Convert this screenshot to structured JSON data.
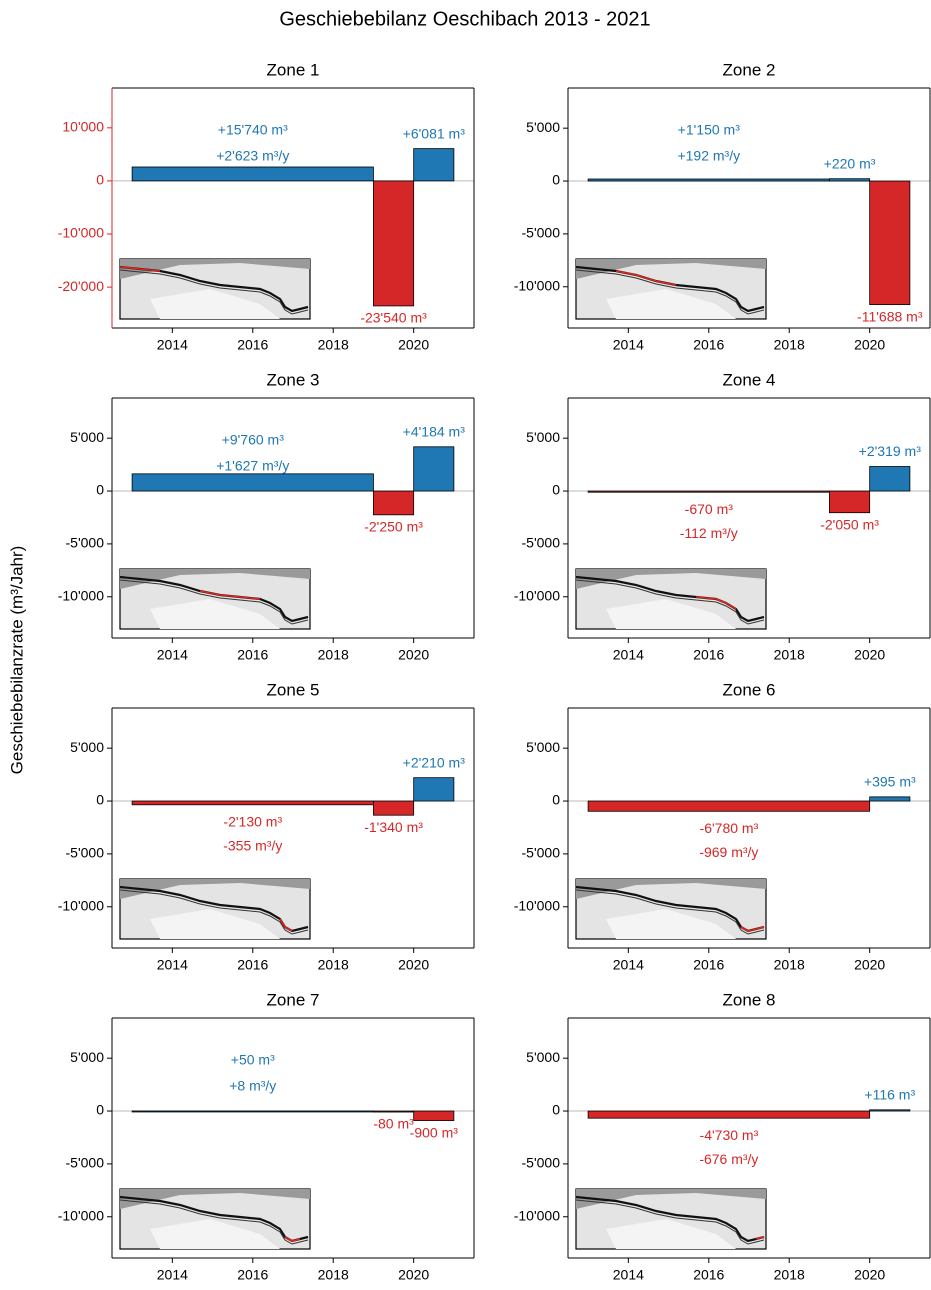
{
  "title": "Geschiebebilanz Oeschibach 2013 - 2021",
  "ylabel": "Geschiebebilanzrate (m³/Jahr)",
  "chart_data": [
    {
      "type": "bar",
      "title": "Zone 1",
      "x_start": [
        2013,
        2019,
        2020
      ],
      "x_end": [
        2019,
        2020,
        2021
      ],
      "values": [
        2623,
        -23540,
        6081
      ],
      "colors": [
        "#1f77b4",
        "#d62728",
        "#1f77b4"
      ],
      "value_labels": [
        "+2'623 m³/y",
        "-23'540 m³",
        "+6'081 m³"
      ],
      "period_total": 15740,
      "period_total_label": "+15'740 m³",
      "xlim": [
        2012.5,
        2021.5
      ],
      "ylim": [
        -27700,
        17500
      ],
      "xticks": [
        2014,
        2016,
        2018,
        2020
      ],
      "yticks": [
        {
          "value": 10000,
          "label": "10'000"
        },
        0,
        {
          "value": -10000,
          "label": "-10'000"
        },
        {
          "value": -20000,
          "label": "-20'000"
        }
      ],
      "axis_color": "#d62728"
    },
    {
      "type": "bar",
      "title": "Zone 2",
      "x_start": [
        2013,
        2019,
        2020
      ],
      "x_end": [
        2019,
        2020,
        2021
      ],
      "values": [
        192,
        220,
        -11688
      ],
      "colors": [
        "#1f77b4",
        "#1f77b4",
        "#d62728"
      ],
      "value_labels": [
        "+192 m³/y",
        "+220 m³",
        "-11'688 m³"
      ],
      "period_total": 1150,
      "period_total_label": "+1'150 m³",
      "xlim": [
        2012.5,
        2021.5
      ],
      "ylim": [
        -13900,
        8800
      ],
      "xticks": [
        2014,
        2016,
        2018,
        2020
      ],
      "yticks": [
        {
          "value": 5000,
          "label": "5'000"
        },
        0,
        {
          "value": -5000,
          "label": "-5'000"
        },
        {
          "value": -10000,
          "label": "-10'000"
        }
      ]
    },
    {
      "type": "bar",
      "title": "Zone 3",
      "x_start": [
        2013,
        2019,
        2020
      ],
      "x_end": [
        2019,
        2020,
        2021
      ],
      "values": [
        1627,
        -2250,
        4184
      ],
      "colors": [
        "#1f77b4",
        "#d62728",
        "#1f77b4"
      ],
      "value_labels": [
        "+1'627 m³/y",
        "-2'250 m³",
        "+4'184 m³"
      ],
      "period_total": 9760,
      "period_total_label": "+9'760 m³",
      "xlim": [
        2012.5,
        2021.5
      ],
      "ylim": [
        -13900,
        8800
      ],
      "xticks": [
        2014,
        2016,
        2018,
        2020
      ],
      "yticks": [
        {
          "value": 5000,
          "label": "5'000"
        },
        0,
        {
          "value": -5000,
          "label": "-5'000"
        },
        {
          "value": -10000,
          "label": "-10'000"
        }
      ]
    },
    {
      "type": "bar",
      "title": "Zone 4",
      "x_start": [
        2013,
        2019,
        2020
      ],
      "x_end": [
        2019,
        2020,
        2021
      ],
      "values": [
        -112,
        -2050,
        2319
      ],
      "colors": [
        "#d62728",
        "#d62728",
        "#1f77b4"
      ],
      "value_labels": [
        "-112 m³/y",
        "-2'050 m³",
        "+2'319 m³"
      ],
      "period_total": -670,
      "period_total_label": "-670 m³",
      "xlim": [
        2012.5,
        2021.5
      ],
      "ylim": [
        -13900,
        8800
      ],
      "xticks": [
        2014,
        2016,
        2018,
        2020
      ],
      "yticks": [
        {
          "value": 5000,
          "label": "5'000"
        },
        0,
        {
          "value": -5000,
          "label": "-5'000"
        },
        {
          "value": -10000,
          "label": "-10'000"
        }
      ]
    },
    {
      "type": "bar",
      "title": "Zone 5",
      "x_start": [
        2013,
        2019,
        2020
      ],
      "x_end": [
        2019,
        2020,
        2021
      ],
      "values": [
        -355,
        -1340,
        2210
      ],
      "colors": [
        "#d62728",
        "#d62728",
        "#1f77b4"
      ],
      "value_labels": [
        "-355 m³/y",
        "-1'340 m³",
        "+2'210 m³"
      ],
      "period_total": -2130,
      "period_total_label": "-2'130 m³",
      "xlim": [
        2012.5,
        2021.5
      ],
      "ylim": [
        -13900,
        8800
      ],
      "xticks": [
        2014,
        2016,
        2018,
        2020
      ],
      "yticks": [
        {
          "value": 5000,
          "label": "5'000"
        },
        0,
        {
          "value": -5000,
          "label": "-5'000"
        },
        {
          "value": -10000,
          "label": "-10'000"
        }
      ]
    },
    {
      "type": "bar",
      "title": "Zone 6",
      "x_start": [
        2013,
        2020
      ],
      "x_end": [
        2020,
        2021
      ],
      "values": [
        -969,
        395
      ],
      "colors": [
        "#d62728",
        "#1f77b4"
      ],
      "value_labels": [
        "-969 m³/y",
        "+395 m³"
      ],
      "period_total": -6780,
      "period_total_label": "-6'780 m³",
      "xlim": [
        2012.5,
        2021.5
      ],
      "ylim": [
        -13900,
        8800
      ],
      "xticks": [
        2014,
        2016,
        2018,
        2020
      ],
      "yticks": [
        {
          "value": 5000,
          "label": "5'000"
        },
        0,
        {
          "value": -5000,
          "label": "-5'000"
        },
        {
          "value": -10000,
          "label": "-10'000"
        }
      ]
    },
    {
      "type": "bar",
      "title": "Zone 7",
      "x_start": [
        2013,
        2019,
        2020
      ],
      "x_end": [
        2019,
        2020,
        2021
      ],
      "values": [
        8,
        -80,
        -900
      ],
      "colors": [
        "#1f77b4",
        "#d62728",
        "#d62728"
      ],
      "value_labels": [
        "+8 m³/y",
        "-80 m³",
        "-900 m³"
      ],
      "period_total": 50,
      "period_total_label": "+50 m³",
      "xlim": [
        2012.5,
        2021.5
      ],
      "ylim": [
        -13900,
        8800
      ],
      "xticks": [
        2014,
        2016,
        2018,
        2020
      ],
      "yticks": [
        {
          "value": 5000,
          "label": "5'000"
        },
        0,
        {
          "value": -5000,
          "label": "-5'000"
        },
        {
          "value": -10000,
          "label": "-10'000"
        }
      ]
    },
    {
      "type": "bar",
      "title": "Zone 8",
      "x_start": [
        2013,
        2020
      ],
      "x_end": [
        2020,
        2021
      ],
      "values": [
        -676,
        116
      ],
      "colors": [
        "#d62728",
        "#1f77b4"
      ],
      "value_labels": [
        "-676 m³/y",
        "+116 m³"
      ],
      "period_total": -4730,
      "period_total_label": "-4'730 m³",
      "xlim": [
        2012.5,
        2021.5
      ],
      "ylim": [
        -13900,
        8800
      ],
      "xticks": [
        2014,
        2016,
        2018,
        2020
      ],
      "yticks": [
        {
          "value": 5000,
          "label": "5'000"
        },
        0,
        {
          "value": -5000,
          "label": "-5'000"
        },
        {
          "value": -10000,
          "label": "-10'000"
        }
      ]
    }
  ]
}
